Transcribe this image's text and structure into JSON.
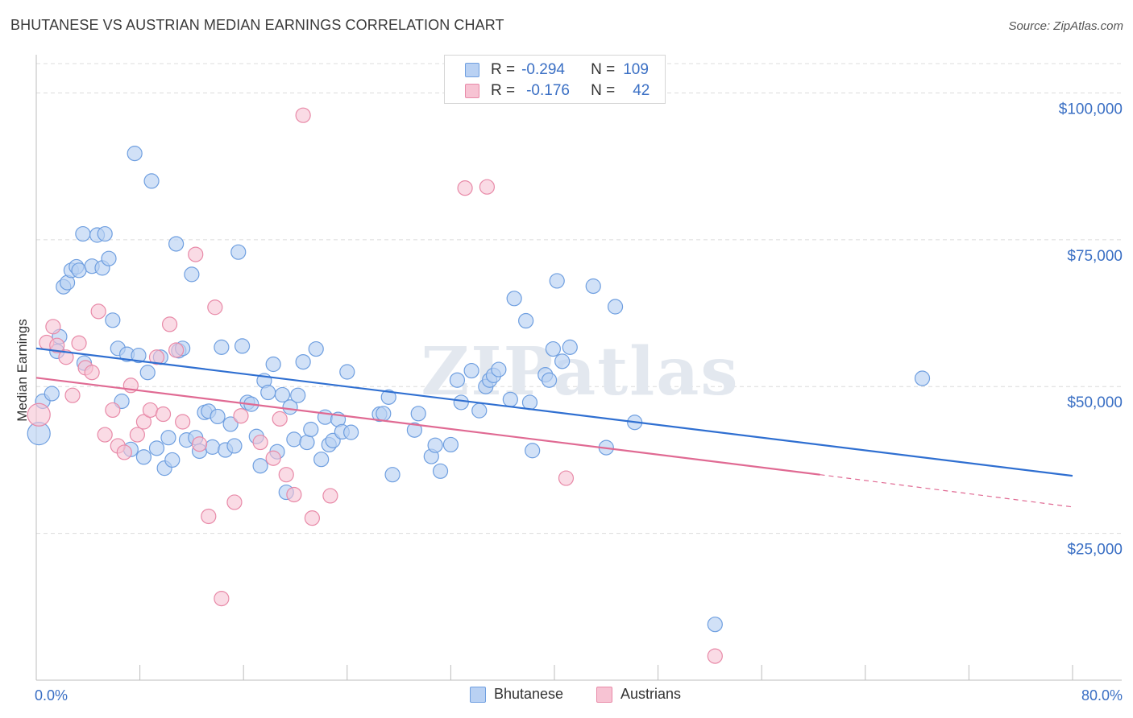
{
  "title": "BHUTANESE VS AUSTRIAN MEDIAN EARNINGS CORRELATION CHART",
  "source": "Source: ZipAtlas.com",
  "watermark": "ZIPatlas",
  "legend": {
    "rows": [
      {
        "r_label": "R =",
        "r_value": "-0.294",
        "n_label": "N =",
        "n_value": "109"
      },
      {
        "r_label": "R =",
        "r_value": "-0.176",
        "n_label": "N =",
        "n_value": "42"
      }
    ]
  },
  "bottom_legend": [
    "Bhutanese",
    "Austrians"
  ],
  "colors": {
    "bhutanese_fill": "#b9d1f3",
    "bhutanese_stroke": "#6f9fe0",
    "bhutanese_line": "#2f6fd1",
    "austrians_fill": "#f7c3d3",
    "austrians_stroke": "#e88aa8",
    "austrians_line": "#e06a93",
    "axis_label": "#3a6fc4",
    "grid": "#dcdcdc"
  },
  "chart_data": {
    "type": "scatter",
    "title": "BHUTANESE VS AUSTRIAN MEDIAN EARNINGS CORRELATION CHART",
    "xlabel": "",
    "ylabel": "Median Earnings",
    "xlim": [
      0,
      80
    ],
    "ylim": [
      0,
      105000
    ],
    "x_tick_labels": [
      "0.0%",
      "80.0%"
    ],
    "y_ticks": [
      25000,
      50000,
      75000,
      100000
    ],
    "y_tick_labels": [
      "$25,000",
      "$50,000",
      "$75,000",
      "$100,000"
    ],
    "grid": true,
    "legend_position": "top-center",
    "series": [
      {
        "name": "Bhutanese",
        "trend": {
          "x0": 0,
          "y0": 56500,
          "x1": 80,
          "y1": 34800
        },
        "points": [
          [
            0.2,
            42000
          ],
          [
            0.5,
            47500
          ],
          [
            1.2,
            48800
          ],
          [
            1.6,
            56000
          ],
          [
            1.8,
            58500
          ],
          [
            2.1,
            67000
          ],
          [
            2.4,
            67700
          ],
          [
            2.7,
            69800
          ],
          [
            3.1,
            70400
          ],
          [
            3.3,
            69800
          ],
          [
            3.7,
            54000
          ],
          [
            3.6,
            76000
          ],
          [
            4.3,
            70500
          ],
          [
            4.7,
            75800
          ],
          [
            5.1,
            70200
          ],
          [
            5.3,
            76000
          ],
          [
            5.6,
            71800
          ],
          [
            5.9,
            61300
          ],
          [
            6.3,
            56500
          ],
          [
            6.6,
            47500
          ],
          [
            7.0,
            55500
          ],
          [
            7.3,
            39300
          ],
          [
            7.6,
            89700
          ],
          [
            7.9,
            55300
          ],
          [
            8.3,
            38000
          ],
          [
            8.6,
            52400
          ],
          [
            8.9,
            85000
          ],
          [
            9.3,
            39500
          ],
          [
            9.6,
            55000
          ],
          [
            9.9,
            36100
          ],
          [
            10.2,
            41300
          ],
          [
            10.5,
            37500
          ],
          [
            10.8,
            74300
          ],
          [
            11.0,
            56100
          ],
          [
            11.3,
            56500
          ],
          [
            11.6,
            40900
          ],
          [
            12.0,
            69100
          ],
          [
            12.3,
            41300
          ],
          [
            12.6,
            39000
          ],
          [
            13.0,
            45600
          ],
          [
            13.3,
            45800
          ],
          [
            13.6,
            39700
          ],
          [
            14.0,
            44900
          ],
          [
            14.3,
            56700
          ],
          [
            14.6,
            39200
          ],
          [
            15.0,
            43600
          ],
          [
            15.3,
            39900
          ],
          [
            15.6,
            72900
          ],
          [
            15.9,
            56900
          ],
          [
            16.3,
            47300
          ],
          [
            16.6,
            47000
          ],
          [
            17.0,
            41500
          ],
          [
            17.3,
            36500
          ],
          [
            17.6,
            51000
          ],
          [
            17.9,
            49000
          ],
          [
            18.3,
            53800
          ],
          [
            18.6,
            38900
          ],
          [
            19.0,
            48600
          ],
          [
            19.3,
            32000
          ],
          [
            19.6,
            46500
          ],
          [
            19.9,
            41000
          ],
          [
            20.2,
            48500
          ],
          [
            20.6,
            54200
          ],
          [
            20.9,
            40500
          ],
          [
            21.2,
            42700
          ],
          [
            21.6,
            56400
          ],
          [
            22.0,
            37600
          ],
          [
            22.3,
            44800
          ],
          [
            22.6,
            40100
          ],
          [
            22.9,
            40800
          ],
          [
            23.3,
            44400
          ],
          [
            23.6,
            42300
          ],
          [
            24.0,
            52500
          ],
          [
            24.3,
            42200
          ],
          [
            26.5,
            45300
          ],
          [
            26.8,
            45400
          ],
          [
            27.2,
            48200
          ],
          [
            27.5,
            35000
          ],
          [
            29.2,
            42600
          ],
          [
            29.5,
            45400
          ],
          [
            30.5,
            38100
          ],
          [
            30.8,
            40000
          ],
          [
            31.2,
            35600
          ],
          [
            32.0,
            40100
          ],
          [
            32.5,
            51100
          ],
          [
            32.8,
            47300
          ],
          [
            33.6,
            52700
          ],
          [
            34.2,
            45900
          ],
          [
            34.7,
            50000
          ],
          [
            35.0,
            51100
          ],
          [
            35.3,
            51900
          ],
          [
            35.7,
            52900
          ],
          [
            36.6,
            47800
          ],
          [
            36.9,
            65000
          ],
          [
            37.8,
            61200
          ],
          [
            38.1,
            47300
          ],
          [
            38.3,
            39100
          ],
          [
            39.3,
            52000
          ],
          [
            39.6,
            51100
          ],
          [
            39.9,
            56400
          ],
          [
            40.2,
            68000
          ],
          [
            40.6,
            54300
          ],
          [
            41.2,
            56700
          ],
          [
            43.0,
            67100
          ],
          [
            44.0,
            39600
          ],
          [
            44.7,
            63600
          ],
          [
            46.2,
            43900
          ],
          [
            52.4,
            9500
          ],
          [
            68.4,
            51400
          ]
        ]
      },
      {
        "name": "Austrians",
        "trend": {
          "x0": 0,
          "y0": 51500,
          "x1": 60.5,
          "y1": 35000,
          "dash_x1": 80,
          "dash_y1": 29500
        },
        "points": [
          [
            0.2,
            45200
          ],
          [
            0.8,
            57500
          ],
          [
            1.3,
            60200
          ],
          [
            1.6,
            57000
          ],
          [
            2.3,
            55000
          ],
          [
            2.8,
            48500
          ],
          [
            3.3,
            57400
          ],
          [
            3.8,
            53200
          ],
          [
            4.3,
            52400
          ],
          [
            4.8,
            62800
          ],
          [
            5.3,
            41800
          ],
          [
            5.9,
            46000
          ],
          [
            6.3,
            39900
          ],
          [
            6.8,
            38800
          ],
          [
            7.3,
            50200
          ],
          [
            7.8,
            41800
          ],
          [
            8.3,
            44000
          ],
          [
            8.8,
            46000
          ],
          [
            9.3,
            55000
          ],
          [
            9.8,
            45300
          ],
          [
            10.3,
            60600
          ],
          [
            10.8,
            56200
          ],
          [
            11.3,
            44000
          ],
          [
            12.3,
            72500
          ],
          [
            12.6,
            40200
          ],
          [
            13.3,
            27900
          ],
          [
            13.8,
            63500
          ],
          [
            14.3,
            13900
          ],
          [
            15.3,
            30300
          ],
          [
            15.8,
            45000
          ],
          [
            17.3,
            40500
          ],
          [
            18.3,
            37800
          ],
          [
            18.8,
            44500
          ],
          [
            19.3,
            35000
          ],
          [
            19.9,
            31600
          ],
          [
            20.6,
            96200
          ],
          [
            21.3,
            27600
          ],
          [
            22.7,
            31400
          ],
          [
            33.1,
            83800
          ],
          [
            34.8,
            84000
          ],
          [
            40.9,
            34400
          ],
          [
            52.4,
            4100
          ]
        ]
      }
    ]
  }
}
